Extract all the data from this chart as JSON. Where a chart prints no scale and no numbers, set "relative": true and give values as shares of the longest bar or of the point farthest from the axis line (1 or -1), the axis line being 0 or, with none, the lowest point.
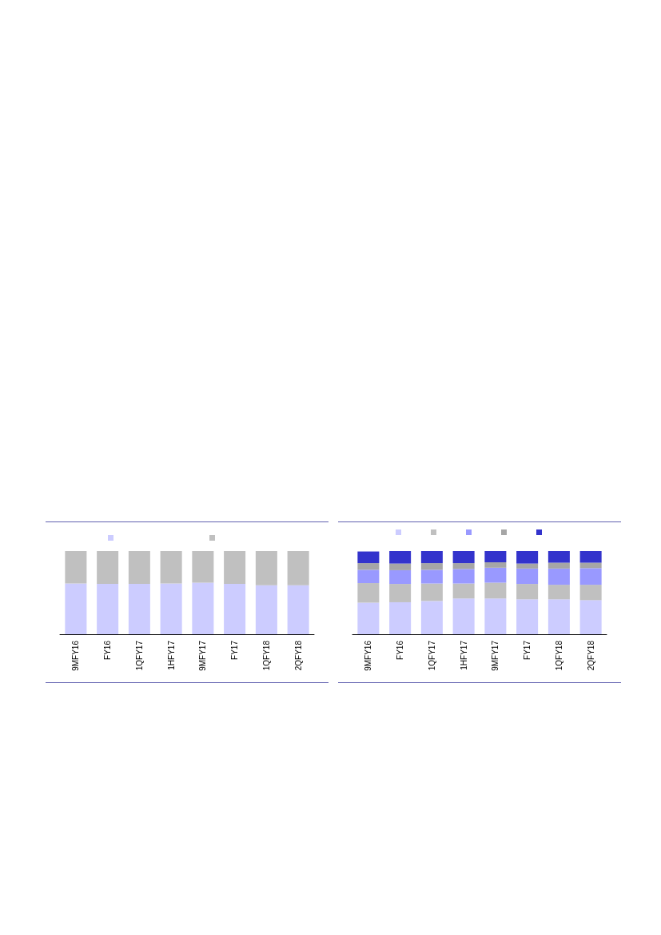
{
  "chart_data": [
    {
      "type": "bar",
      "relative": true,
      "stacked": true,
      "categories": [
        "9MFY16",
        "FY16",
        "1QFY17",
        "1HFY17",
        "9MFY17",
        "FY17",
        "1QFY18",
        "2QFY18"
      ],
      "series": [
        {
          "color": "#ccccff",
          "values": [
            0.61,
            0.605,
            0.605,
            0.61,
            0.62,
            0.605,
            0.59,
            0.59
          ]
        },
        {
          "color": "#c0c0c0",
          "values": [
            0.39,
            0.395,
            0.395,
            0.39,
            0.38,
            0.395,
            0.41,
            0.41
          ]
        }
      ]
    },
    {
      "type": "bar",
      "relative": true,
      "stacked": true,
      "categories": [
        "9MFY16",
        "FY16",
        "1QFY17",
        "1HFY17",
        "9MFY17",
        "FY17",
        "1QFY18",
        "2QFY18"
      ],
      "series": [
        {
          "color": "#ccccff",
          "values": [
            0.38,
            0.385,
            0.4,
            0.43,
            0.43,
            0.42,
            0.42,
            0.41
          ]
        },
        {
          "color": "#c0c0c0",
          "values": [
            0.235,
            0.22,
            0.21,
            0.18,
            0.19,
            0.185,
            0.175,
            0.185
          ]
        },
        {
          "color": "#9999ff",
          "values": [
            0.16,
            0.165,
            0.165,
            0.175,
            0.18,
            0.185,
            0.195,
            0.2
          ]
        },
        {
          "color": "#a6a6a6",
          "values": [
            0.08,
            0.08,
            0.08,
            0.07,
            0.065,
            0.06,
            0.07,
            0.065
          ]
        },
        {
          "color": "#3333cc",
          "values": [
            0.14,
            0.15,
            0.145,
            0.145,
            0.135,
            0.15,
            0.14,
            0.14
          ]
        }
      ]
    }
  ]
}
